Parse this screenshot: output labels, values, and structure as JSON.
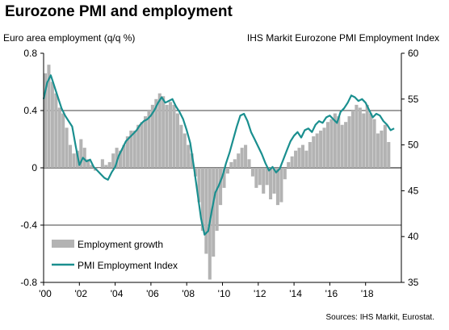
{
  "chart_data": {
    "type": "bar+line",
    "title": "Eurozone PMI and employment",
    "ylabel_left": "Euro area employment (q/q %)",
    "ylabel_right": "IHS Markit  Eurozone PMI Employment Index",
    "source": "Sources: IHS Markit, Eurostat.",
    "y_left": {
      "min": -0.8,
      "max": 0.8,
      "ticks": [
        -0.8,
        -0.4,
        0,
        0.4,
        0.8
      ],
      "tick_labels": [
        "-0.8",
        "-0.4",
        "0",
        "0.4",
        "0.8"
      ]
    },
    "y_right": {
      "min": 35,
      "max": 60,
      "ticks": [
        35,
        40,
        45,
        50,
        55,
        60
      ],
      "tick_labels": [
        "35",
        "40",
        "45",
        "50",
        "55",
        "60"
      ]
    },
    "x_axis": {
      "min": 2000,
      "max": 2020,
      "ticks": [
        2000,
        2002,
        2004,
        2006,
        2008,
        2010,
        2012,
        2014,
        2016,
        2018
      ],
      "tick_labels": [
        "'00",
        "'02",
        "'04",
        "'06",
        "'08",
        "'10",
        "'12",
        "'14",
        "'16",
        "'18"
      ]
    },
    "gridlines": [
      0.4,
      -0.4
    ],
    "legend": {
      "placement": "lower-left",
      "entries": [
        {
          "label": "Employment growth",
          "type": "bar",
          "color": "#b3b3b3"
        },
        {
          "label": "PMI Employment Index",
          "type": "line",
          "color": "#1a8f8f"
        }
      ]
    },
    "series": [
      {
        "name": "Employment growth",
        "type": "bar",
        "axis": "left",
        "color": "#b3b3b3",
        "x": [
          2000.0,
          2000.2,
          2000.4,
          2000.6,
          2000.8,
          2001.0,
          2001.2,
          2001.4,
          2001.6,
          2001.8,
          2002.0,
          2002.2,
          2002.4,
          2002.6,
          2002.8,
          2003.0,
          2003.2,
          2003.4,
          2003.6,
          2003.8,
          2004.0,
          2004.2,
          2004.4,
          2004.6,
          2004.8,
          2005.0,
          2005.2,
          2005.4,
          2005.6,
          2005.8,
          2006.0,
          2006.2,
          2006.4,
          2006.6,
          2006.8,
          2007.0,
          2007.2,
          2007.4,
          2007.6,
          2007.8,
          2008.0,
          2008.2,
          2008.4,
          2008.6,
          2008.8,
          2009.0,
          2009.2,
          2009.4,
          2009.6,
          2009.8,
          2010.0,
          2010.2,
          2010.4,
          2010.6,
          2010.8,
          2011.0,
          2011.2,
          2011.4,
          2011.6,
          2011.8,
          2012.0,
          2012.2,
          2012.4,
          2012.6,
          2012.8,
          2013.0,
          2013.2,
          2013.4,
          2013.6,
          2013.8,
          2014.0,
          2014.2,
          2014.4,
          2014.6,
          2014.8,
          2015.0,
          2015.2,
          2015.4,
          2015.6,
          2015.8,
          2016.0,
          2016.2,
          2016.4,
          2016.6,
          2016.8,
          2017.0,
          2017.2,
          2017.4,
          2017.6,
          2017.8,
          2018.0,
          2018.2,
          2018.4,
          2018.6,
          2018.8,
          2019.0,
          2019.2
        ],
        "values": [
          0.66,
          0.72,
          0.6,
          0.52,
          0.42,
          0.38,
          0.28,
          0.16,
          0.1,
          0.12,
          0.2,
          0.14,
          0.06,
          0.02,
          -0.02,
          0.0,
          0.06,
          0.02,
          0.04,
          0.1,
          0.14,
          0.12,
          0.16,
          0.22,
          0.26,
          0.26,
          0.3,
          0.32,
          0.36,
          0.4,
          0.44,
          0.48,
          0.52,
          0.5,
          0.44,
          0.46,
          0.44,
          0.38,
          0.3,
          0.24,
          0.16,
          0.1,
          -0.06,
          -0.24,
          -0.44,
          -0.6,
          -0.78,
          -0.62,
          -0.44,
          -0.26,
          -0.14,
          -0.04,
          0.04,
          0.06,
          0.1,
          0.14,
          0.16,
          0.06,
          -0.06,
          -0.14,
          -0.12,
          -0.18,
          -0.12,
          -0.22,
          -0.18,
          -0.26,
          -0.24,
          -0.08,
          0.04,
          0.08,
          0.12,
          0.14,
          0.16,
          0.12,
          0.18,
          0.22,
          0.24,
          0.26,
          0.28,
          0.32,
          0.34,
          0.38,
          0.36,
          0.3,
          0.32,
          0.36,
          0.4,
          0.44,
          0.42,
          0.38,
          0.44,
          0.38,
          0.34,
          0.24,
          0.26,
          0.3,
          0.18
        ]
      },
      {
        "name": "PMI Employment Index",
        "type": "line",
        "axis": "right",
        "color": "#1a8f8f",
        "x": [
          2000.0,
          2000.2,
          2000.4,
          2000.6,
          2000.8,
          2001.0,
          2001.2,
          2001.4,
          2001.6,
          2001.8,
          2002.0,
          2002.2,
          2002.4,
          2002.6,
          2002.8,
          2003.0,
          2003.2,
          2003.4,
          2003.6,
          2003.8,
          2004.0,
          2004.2,
          2004.4,
          2004.6,
          2004.8,
          2005.0,
          2005.2,
          2005.4,
          2005.6,
          2005.8,
          2006.0,
          2006.2,
          2006.4,
          2006.6,
          2006.8,
          2007.0,
          2007.2,
          2007.4,
          2007.6,
          2007.8,
          2008.0,
          2008.2,
          2008.4,
          2008.6,
          2008.8,
          2009.0,
          2009.2,
          2009.4,
          2009.6,
          2009.8,
          2010.0,
          2010.2,
          2010.4,
          2010.6,
          2010.8,
          2011.0,
          2011.2,
          2011.4,
          2011.6,
          2011.8,
          2012.0,
          2012.2,
          2012.4,
          2012.6,
          2012.8,
          2013.0,
          2013.2,
          2013.4,
          2013.6,
          2013.8,
          2014.0,
          2014.2,
          2014.4,
          2014.6,
          2014.8,
          2015.0,
          2015.2,
          2015.4,
          2015.6,
          2015.8,
          2016.0,
          2016.2,
          2016.4,
          2016.6,
          2016.8,
          2017.0,
          2017.2,
          2017.4,
          2017.6,
          2017.8,
          2018.0,
          2018.2,
          2018.4,
          2018.6,
          2018.8,
          2019.0,
          2019.2,
          2019.4,
          2019.6
        ],
        "values": [
          55.0,
          56.8,
          57.6,
          56.4,
          55.2,
          54.0,
          53.2,
          52.6,
          52.0,
          49.8,
          47.8,
          48.6,
          48.2,
          48.4,
          47.6,
          47.2,
          46.8,
          46.4,
          46.2,
          47.0,
          47.6,
          48.8,
          49.6,
          50.4,
          50.8,
          51.2,
          51.6,
          52.2,
          52.6,
          52.8,
          53.2,
          53.8,
          54.6,
          55.2,
          54.6,
          54.8,
          55.0,
          54.2,
          53.6,
          52.8,
          51.6,
          50.2,
          47.6,
          44.8,
          42.0,
          40.2,
          40.6,
          42.8,
          44.8,
          45.6,
          46.6,
          48.0,
          49.2,
          50.6,
          52.0,
          53.2,
          53.4,
          52.6,
          51.4,
          50.6,
          49.8,
          49.0,
          48.0,
          47.2,
          47.6,
          47.0,
          47.4,
          48.4,
          49.4,
          50.4,
          51.0,
          51.4,
          50.8,
          51.6,
          51.8,
          51.4,
          52.2,
          52.6,
          52.4,
          53.0,
          53.2,
          52.8,
          52.4,
          53.6,
          54.0,
          54.6,
          55.4,
          55.2,
          54.8,
          55.0,
          54.6,
          53.8,
          53.0,
          53.4,
          53.2,
          52.6,
          52.2,
          51.6,
          51.8
        ]
      }
    ]
  }
}
